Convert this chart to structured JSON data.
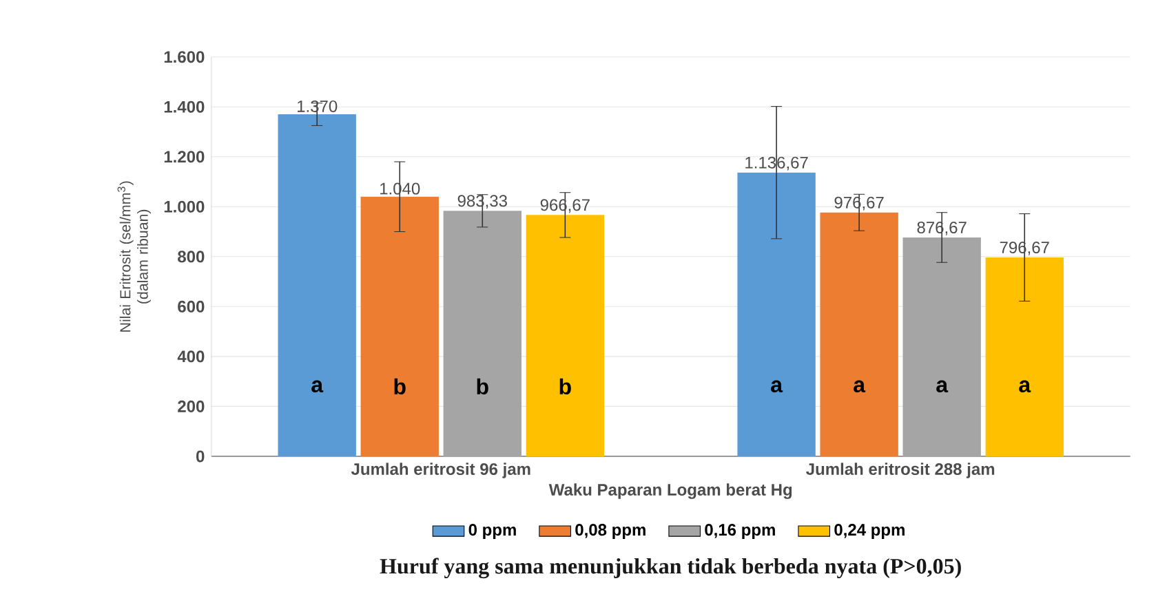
{
  "chart_data": {
    "type": "bar",
    "xlabel": "Waku Paparan Logam berat Hg",
    "ylabel": "Nilai Eritrosit (sel/mm$^{3}$) (dalam ribuan)",
    "categories": [
      "Jumlah eritrosit 96 jam",
      "Jumlah eritrosit 288 jam"
    ],
    "series": [
      {
        "name": "0 ppm",
        "color": "#5b9bd5",
        "values": [
          1370,
          1136.67
        ],
        "errors": [
          45,
          265
        ],
        "value_labels": [
          "1.370",
          "1.136,67"
        ]
      },
      {
        "name": "0,08 ppm",
        "color": "#ed7d31",
        "values": [
          1040,
          976.67
        ],
        "errors": [
          140,
          73
        ],
        "value_labels": [
          "1.040",
          "976,67"
        ]
      },
      {
        "name": "0,16 ppm",
        "color": "#a5a5a5",
        "values": [
          983.33,
          876.67
        ],
        "errors": [
          65,
          100
        ],
        "value_labels": [
          "983,33",
          "876,67"
        ]
      },
      {
        "name": "0,24 ppm",
        "color": "#ffc000",
        "values": [
          966.67,
          796.67
        ],
        "errors": [
          90,
          175
        ],
        "value_labels": [
          "966,67",
          "796,67"
        ]
      }
    ],
    "ylim": [
      0,
      1600
    ],
    "yticks": [
      0,
      200,
      400,
      600,
      800,
      {
        "value": 1000,
        "label": "1.000"
      },
      {
        "value": 1200,
        "label": "1.200"
      },
      {
        "value": 1400,
        "label": "1.400"
      },
      {
        "value": 1600,
        "label": "1.600"
      }
    ],
    "grid": "y",
    "legend": "bottom",
    "annotations": [
      "a",
      "b",
      "b",
      "b",
      "a",
      "a",
      "a",
      "a",
      "Huruf yang sama menunjukkan  tidak berbeda nyata (P>0,05)"
    ]
  }
}
